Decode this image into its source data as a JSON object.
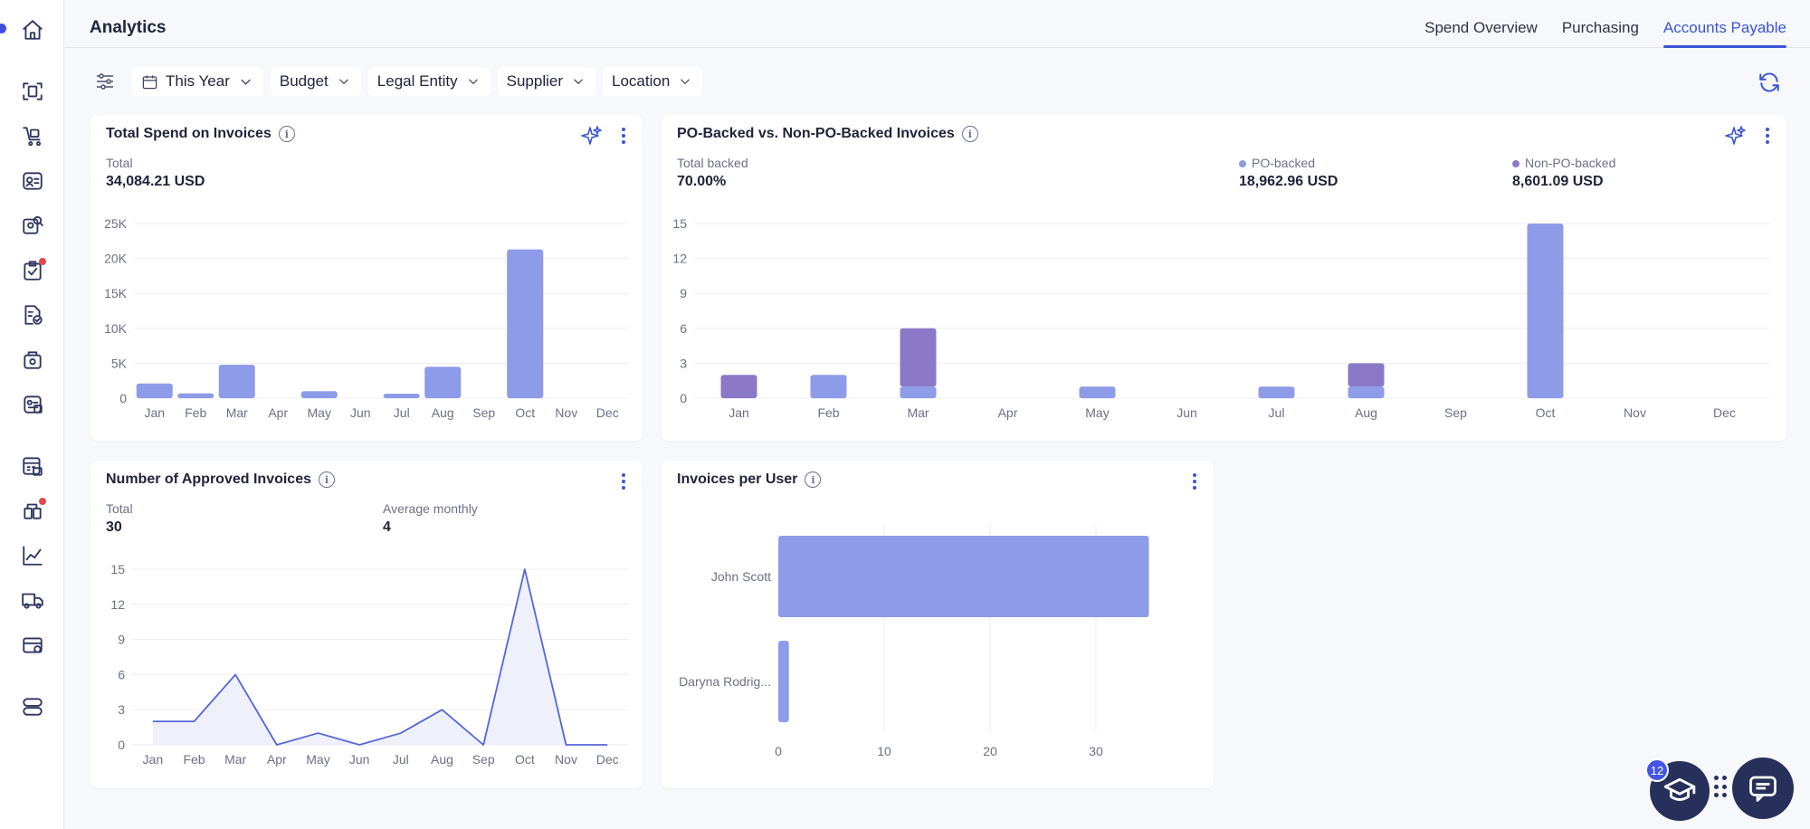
{
  "header": {
    "title": "Analytics",
    "tabs": [
      {
        "label": "Spend Overview",
        "active": false
      },
      {
        "label": "Purchasing",
        "active": false
      },
      {
        "label": "Accounts Payable",
        "active": true
      }
    ]
  },
  "filters": {
    "date": "This Year",
    "budget": "Budget",
    "legal_entity": "Legal Entity",
    "supplier": "Supplier",
    "location": "Location"
  },
  "sidebar": {
    "items": [
      "home-icon",
      "scan-icon",
      "cart-icon",
      "request-icon",
      "users-search-icon",
      "approval-icon",
      "document-check-icon",
      "receipt-icon",
      "invoice-icon",
      "calculator-icon",
      "budget-icon",
      "analytics-icon",
      "truck-icon",
      "settings-card-icon",
      "toggle-icon"
    ],
    "badges": [
      "approval-icon",
      "budget-icon"
    ]
  },
  "colors": {
    "accent": "#3a54d4",
    "bar": "#8e9be8",
    "bar_dark": "#8b79c8",
    "line": "#5566d8"
  },
  "cards": {
    "total_spend": {
      "title": "Total Spend on Invoices",
      "total_label": "Total",
      "total_value": "34,084.21 USD"
    },
    "po_backed": {
      "title": "PO-Backed vs. Non-PO-Backed Invoices",
      "total_label": "Total backed",
      "total_value": "70.00%",
      "po_label": "PO-backed",
      "po_value": "18,962.96 USD",
      "nonpo_label": "Non-PO-backed",
      "nonpo_value": "8,601.09 USD"
    },
    "approved": {
      "title": "Number of Approved Invoices",
      "total_label": "Total",
      "total_value": "30",
      "avg_label": "Average monthly",
      "avg_value": "4"
    },
    "per_user": {
      "title": "Invoices per User"
    }
  },
  "education": {
    "badge_count": "12"
  },
  "chart_data": [
    {
      "type": "bar",
      "title": "Total Spend on Invoices",
      "categories": [
        "Jan",
        "Feb",
        "Mar",
        "Apr",
        "May",
        "Jun",
        "Jul",
        "Aug",
        "Sep",
        "Oct",
        "Nov",
        "Dec"
      ],
      "values": [
        2100,
        700,
        4800,
        0,
        1000,
        0,
        650,
        4500,
        0,
        21300,
        0,
        0
      ],
      "ylim": [
        0,
        25000
      ],
      "yticks": [
        "0",
        "5K",
        "10K",
        "15K",
        "20K",
        "25K"
      ],
      "grid": true
    },
    {
      "type": "bar",
      "stacked": true,
      "title": "PO-Backed vs. Non-PO-Backed Invoices",
      "categories": [
        "Jan",
        "Feb",
        "Mar",
        "Apr",
        "May",
        "Jun",
        "Jul",
        "Aug",
        "Sep",
        "Oct",
        "Nov",
        "Dec"
      ],
      "series": [
        {
          "name": "PO-backed",
          "values": [
            0,
            2,
            1,
            0,
            1,
            0,
            1,
            1,
            0,
            15,
            0,
            0
          ]
        },
        {
          "name": "Non-PO-backed",
          "values": [
            2,
            0,
            5,
            0,
            0,
            0,
            0,
            2,
            0,
            0,
            0,
            0
          ]
        }
      ],
      "ylim": [
        0,
        15
      ],
      "yticks": [
        "0",
        "3",
        "6",
        "9",
        "12",
        "15"
      ],
      "legend": "top",
      "grid": true
    },
    {
      "type": "line",
      "title": "Number of Approved Invoices",
      "categories": [
        "Jan",
        "Feb",
        "Mar",
        "Apr",
        "May",
        "Jun",
        "Jul",
        "Aug",
        "Sep",
        "Oct",
        "Nov",
        "Dec"
      ],
      "values": [
        2,
        2,
        6,
        0,
        1,
        0,
        1,
        3,
        0,
        15,
        0,
        0
      ],
      "ylim": [
        0,
        15
      ],
      "yticks": [
        "0",
        "3",
        "6",
        "9",
        "12",
        "15"
      ],
      "grid": true
    },
    {
      "type": "bar",
      "orientation": "horizontal",
      "title": "Invoices per User",
      "categories": [
        "John Scott",
        "Daryna Rodrig..."
      ],
      "values": [
        35,
        1
      ],
      "xlim": [
        0,
        35
      ],
      "xticks": [
        "0",
        "10",
        "20",
        "30"
      ],
      "grid": true
    }
  ]
}
